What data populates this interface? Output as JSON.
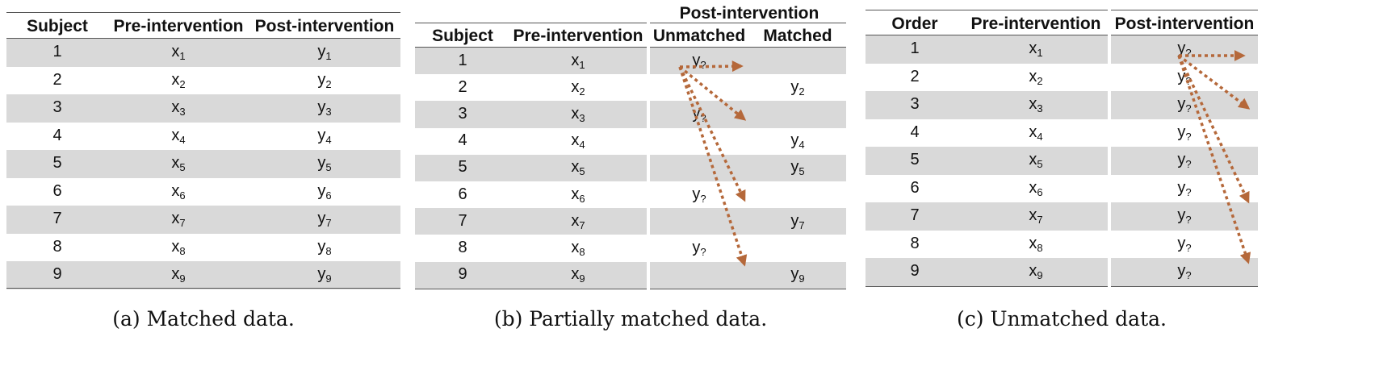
{
  "panel_a": {
    "headers": [
      "Subject",
      "Pre-intervention",
      "Post-intervention"
    ],
    "rows": [
      [
        "1",
        "x",
        "1",
        "y",
        "1"
      ],
      [
        "2",
        "x",
        "2",
        "y",
        "2"
      ],
      [
        "3",
        "x",
        "3",
        "y",
        "3"
      ],
      [
        "4",
        "x",
        "4",
        "y",
        "4"
      ],
      [
        "5",
        "x",
        "5",
        "y",
        "5"
      ],
      [
        "6",
        "x",
        "6",
        "y",
        "6"
      ],
      [
        "7",
        "x",
        "7",
        "y",
        "7"
      ],
      [
        "8",
        "x",
        "8",
        "y",
        "8"
      ],
      [
        "9",
        "x",
        "9",
        "y",
        "9"
      ]
    ],
    "caption": "(a) Matched data."
  },
  "panel_b": {
    "group_header": "Post-intervention",
    "headers": [
      "Subject",
      "Pre-intervention",
      "Unmatched",
      "Matched"
    ],
    "rows": [
      {
        "subject": "1",
        "pre": "x",
        "pre_sub": "1",
        "unmatched": "y",
        "unmatched_sub": "?",
        "matched": "",
        "matched_sub": ""
      },
      {
        "subject": "2",
        "pre": "x",
        "pre_sub": "2",
        "unmatched": "",
        "unmatched_sub": "",
        "matched": "y",
        "matched_sub": "2"
      },
      {
        "subject": "3",
        "pre": "x",
        "pre_sub": "3",
        "unmatched": "y",
        "unmatched_sub": "?",
        "matched": "",
        "matched_sub": ""
      },
      {
        "subject": "4",
        "pre": "x",
        "pre_sub": "4",
        "unmatched": "",
        "unmatched_sub": "",
        "matched": "y",
        "matched_sub": "4"
      },
      {
        "subject": "5",
        "pre": "x",
        "pre_sub": "5",
        "unmatched": "",
        "unmatched_sub": "",
        "matched": "y",
        "matched_sub": "5"
      },
      {
        "subject": "6",
        "pre": "x",
        "pre_sub": "6",
        "unmatched": "y",
        "unmatched_sub": "?",
        "matched": "",
        "matched_sub": ""
      },
      {
        "subject": "7",
        "pre": "x",
        "pre_sub": "7",
        "unmatched": "",
        "unmatched_sub": "",
        "matched": "y",
        "matched_sub": "7"
      },
      {
        "subject": "8",
        "pre": "x",
        "pre_sub": "8",
        "unmatched": "y",
        "unmatched_sub": "?",
        "matched": "",
        "matched_sub": ""
      },
      {
        "subject": "9",
        "pre": "x",
        "pre_sub": "9",
        "unmatched": "",
        "unmatched_sub": "",
        "matched": "y",
        "matched_sub": "9"
      }
    ],
    "caption": "(b) Partially matched data."
  },
  "panel_c": {
    "headers": [
      "Order",
      "Pre-intervention",
      "Post-intervention"
    ],
    "rows": [
      [
        "1",
        "x",
        "1",
        "y",
        "?"
      ],
      [
        "2",
        "x",
        "2",
        "y",
        "?"
      ],
      [
        "3",
        "x",
        "3",
        "y",
        "?"
      ],
      [
        "4",
        "x",
        "4",
        "y",
        "?"
      ],
      [
        "5",
        "x",
        "5",
        "y",
        "?"
      ],
      [
        "6",
        "x",
        "6",
        "y",
        "?"
      ],
      [
        "7",
        "x",
        "7",
        "y",
        "?"
      ],
      [
        "8",
        "x",
        "8",
        "y",
        "?"
      ],
      [
        "9",
        "x",
        "9",
        "y",
        "?"
      ]
    ],
    "caption": "(c) Unmatched data."
  },
  "colors": {
    "arrow": "#b5683a",
    "band": "#d9d9d9",
    "rule": "#555555"
  }
}
